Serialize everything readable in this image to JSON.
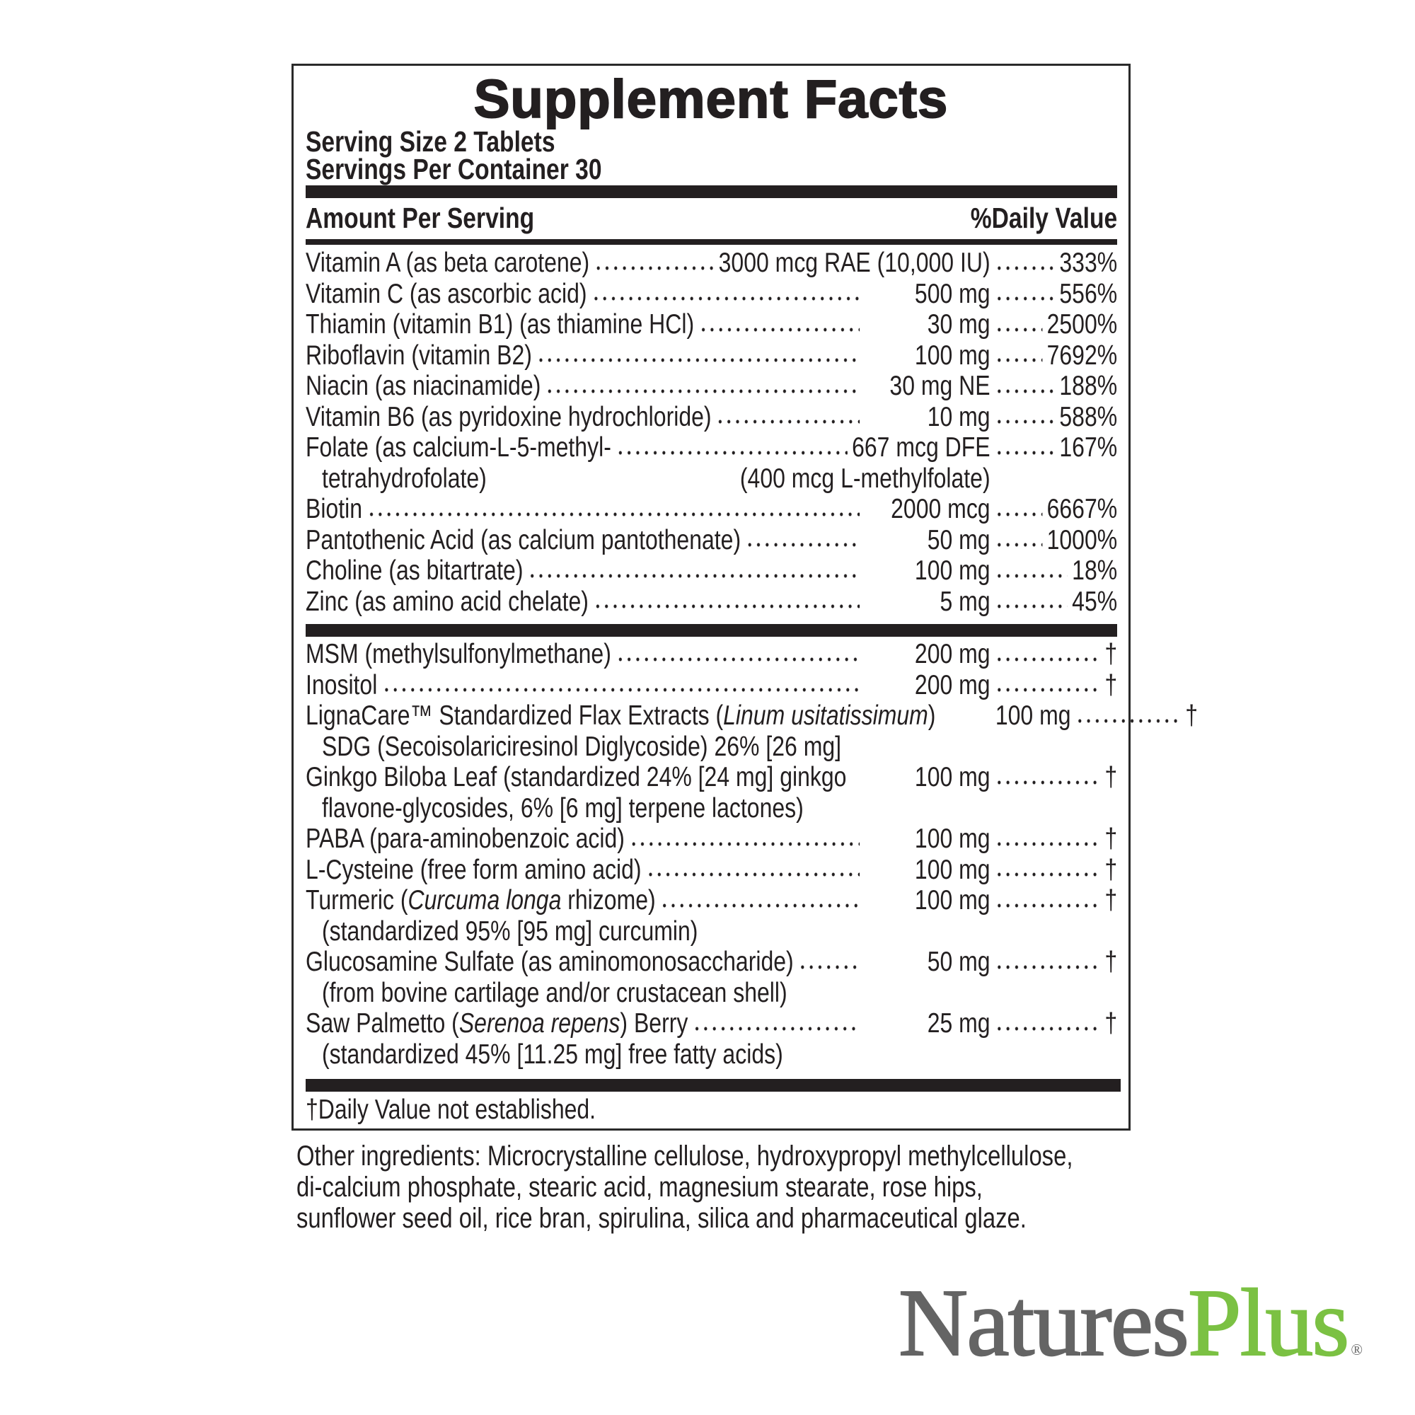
{
  "panel": {
    "title": "Supplement Facts",
    "serving_size": "Serving Size 2 Tablets",
    "servings_per_container": "Servings Per Container 30",
    "amount_header": "Amount Per Serving",
    "dv_header": "%Daily Value",
    "vitamins": [
      {
        "name": [
          {
            "t": "Vitamin A (as beta carotene)"
          }
        ],
        "amount": "3000 mcg RAE (10,000 IU)",
        "dv": "333%",
        "leader": true
      },
      {
        "name": [
          {
            "t": "Vitamin C (as ascorbic acid)"
          }
        ],
        "amount": "500 mg",
        "dv": "556%",
        "leader": true
      },
      {
        "name": [
          {
            "t": "Thiamin (vitamin B1) (as thiamine HCl)"
          }
        ],
        "amount": "30 mg",
        "dv": "2500%",
        "leader": true
      },
      {
        "name": [
          {
            "t": "Riboflavin (vitamin B2)"
          }
        ],
        "amount": "100 mg",
        "dv": "7692%",
        "leader": true
      },
      {
        "name": [
          {
            "t": "Niacin (as niacinamide)"
          }
        ],
        "amount": "30 mg NE",
        "dv": "188%",
        "leader": true
      },
      {
        "name": [
          {
            "t": "Vitamin B6 (as pyridoxine hydrochloride)"
          }
        ],
        "amount": "10 mg",
        "dv": "588%",
        "leader": true
      },
      {
        "name": [
          {
            "t": "Folate (as calcium-L-5-methyl-"
          }
        ],
        "amount": "667 mcg DFE",
        "dv": "167%",
        "leader": true
      },
      {
        "name": [
          {
            "t": "tetrahydrofolate)"
          }
        ],
        "amount": "(400 mcg L-methylfolate)",
        "dv": "",
        "leader": false,
        "cont": true
      },
      {
        "name": [
          {
            "t": "Biotin"
          }
        ],
        "amount": "2000 mcg",
        "dv": "6667%",
        "leader": true
      },
      {
        "name": [
          {
            "t": "Pantothenic Acid (as calcium pantothenate)"
          }
        ],
        "amount": "50 mg",
        "dv": "1000%",
        "leader": true
      },
      {
        "name": [
          {
            "t": "Choline (as bitartrate)"
          }
        ],
        "amount": "100 mg",
        "dv": "18%",
        "leader": true
      },
      {
        "name": [
          {
            "t": "Zinc (as amino acid chelate)"
          }
        ],
        "amount": "5 mg",
        "dv": "45%",
        "leader": true
      }
    ],
    "others": [
      {
        "name": [
          {
            "t": "MSM (methylsulfonylmethane)"
          }
        ],
        "amount": "200 mg",
        "dv": "†",
        "leader": true
      },
      {
        "name": [
          {
            "t": "Inositol"
          }
        ],
        "amount": "200 mg",
        "dv": "†",
        "leader": true
      },
      {
        "name": [
          {
            "t": "LignaCare™ Standardized Flax Extracts ("
          },
          {
            "t": "Linum usitatissimum",
            "i": true
          },
          {
            "t": ")"
          }
        ],
        "amount": "100 mg",
        "dv": "†",
        "leader": false
      },
      {
        "name": [
          {
            "t": "SDG (Secoisolariciresinol Diglycoside) 26% [26 mg]"
          }
        ],
        "amount": "",
        "dv": "",
        "leader": false,
        "cont": true
      },
      {
        "name": [
          {
            "t": "Ginkgo Biloba Leaf (standardized 24% [24 mg] ginkgo"
          }
        ],
        "amount": "100 mg",
        "dv": "†",
        "leader": false
      },
      {
        "name": [
          {
            "t": "flavone-glycosides, 6% [6 mg] terpene lactones)"
          }
        ],
        "amount": "",
        "dv": "",
        "leader": false,
        "cont": true
      },
      {
        "name": [
          {
            "t": "PABA (para-aminobenzoic acid)"
          }
        ],
        "amount": "100 mg",
        "dv": "†",
        "leader": true
      },
      {
        "name": [
          {
            "t": "L-Cysteine (free form amino acid)"
          }
        ],
        "amount": "100 mg",
        "dv": "†",
        "leader": true
      },
      {
        "name": [
          {
            "t": "Turmeric ("
          },
          {
            "t": "Curcuma longa",
            "i": true
          },
          {
            "t": " rhizome)"
          }
        ],
        "amount": "100 mg",
        "dv": "†",
        "leader": true
      },
      {
        "name": [
          {
            "t": "(standardized 95% [95 mg] curcumin)"
          }
        ],
        "amount": "",
        "dv": "",
        "leader": false,
        "cont": true
      },
      {
        "name": [
          {
            "t": "Glucosamine Sulfate (as aminomonosaccharide)"
          }
        ],
        "amount": "50 mg",
        "dv": "†",
        "leader": true
      },
      {
        "name": [
          {
            "t": "(from bovine cartilage and/or crustacean shell)"
          }
        ],
        "amount": "",
        "dv": "",
        "leader": false,
        "cont": true
      },
      {
        "name": [
          {
            "t": "Saw Palmetto ("
          },
          {
            "t": "Serenoa repens",
            "i": true
          },
          {
            "t": ") Berry"
          }
        ],
        "amount": "25 mg",
        "dv": "†",
        "leader": true
      },
      {
        "name": [
          {
            "t": "(standardized 45% [11.25 mg] free fatty acids)"
          }
        ],
        "amount": "",
        "dv": "",
        "leader": false,
        "cont": true
      }
    ],
    "footnote": "†Daily Value not established."
  },
  "other_ingredients": [
    "Other ingredients: Microcrystalline cellulose, hydroxypropyl methylcellulose,",
    "di-calcium phosphate, stearic acid, magnesium stearate, rose hips,",
    "sunflower seed oil, rice bran, spirulina, silica and pharmaceutical glaze."
  ],
  "logo": {
    "part1": "Natures",
    "part2": "Plus",
    "mark": "®",
    "color_gray": "#646464",
    "color_green": "#7bc143"
  }
}
